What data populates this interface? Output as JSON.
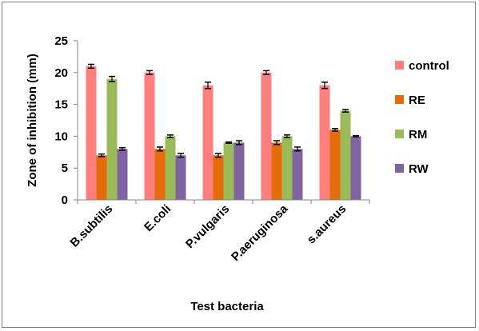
{
  "chart_data": {
    "type": "bar",
    "title": "",
    "xlabel": "Test bacteria",
    "ylabel": "Zone of inhibition (mm)",
    "ylim": [
      0,
      25
    ],
    "yticks": [
      "0",
      "5",
      "10",
      "15",
      "20",
      "25"
    ],
    "grid": false,
    "legend_position": "right",
    "categories": [
      "B.subtilis",
      "E.coli",
      "P.vulgaris",
      "P.aeruginosa",
      "s.aureus"
    ],
    "series": [
      {
        "name": "control",
        "color": "#ff7f7f",
        "values": [
          21,
          20,
          18,
          20,
          18
        ],
        "errors": [
          0.3,
          0.3,
          0.5,
          0.3,
          0.5
        ]
      },
      {
        "name": "RE",
        "color": "#e46c0a",
        "values": [
          7,
          8,
          7,
          9,
          11
        ],
        "errors": [
          0.2,
          0.3,
          0.3,
          0.3,
          0.2
        ]
      },
      {
        "name": "RM",
        "color": "#9bbb59",
        "values": [
          19,
          10,
          9,
          10,
          14
        ],
        "errors": [
          0.4,
          0.2,
          0.1,
          0.2,
          0.2
        ]
      },
      {
        "name": "RW",
        "color": "#8064a2",
        "values": [
          8,
          7,
          9,
          8,
          10
        ],
        "errors": [
          0.2,
          0.3,
          0.3,
          0.3,
          0.1
        ]
      }
    ]
  }
}
